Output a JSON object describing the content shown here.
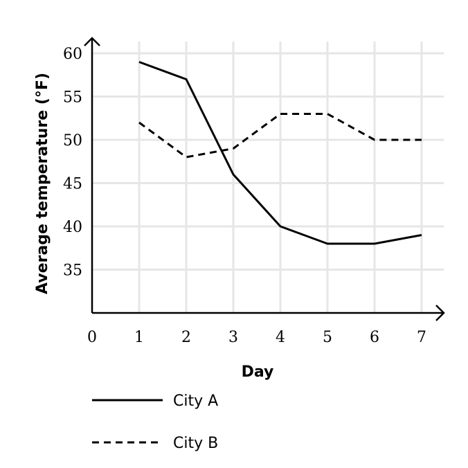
{
  "chart_data": {
    "type": "line",
    "xlabel": "Day",
    "ylabel": "Average temperature (°F)",
    "x": [
      1,
      2,
      3,
      4,
      5,
      6,
      7
    ],
    "xlim": [
      0,
      7
    ],
    "ylim": [
      30,
      60
    ],
    "x_ticks": [
      0,
      1,
      2,
      3,
      4,
      5,
      6,
      7
    ],
    "y_ticks": [
      35,
      40,
      45,
      50,
      55,
      60
    ],
    "grid": true,
    "legend_position": "bottom-left",
    "series": [
      {
        "name": "City A",
        "style": "solid",
        "values": [
          59,
          57,
          46,
          40,
          38,
          38,
          39
        ]
      },
      {
        "name": "City B",
        "style": "dashed",
        "values": [
          52,
          48,
          49,
          53,
          53,
          50,
          50
        ]
      }
    ]
  }
}
